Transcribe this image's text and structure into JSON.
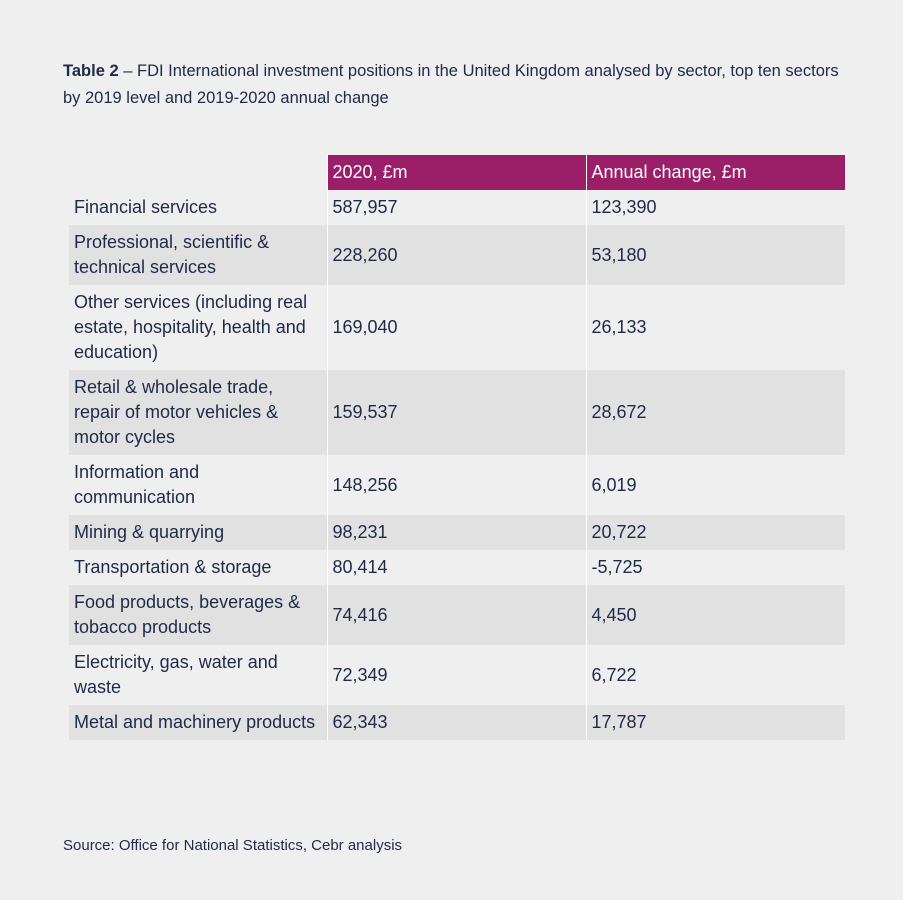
{
  "caption": {
    "label": "Table 2",
    "text": " – FDI International investment positions in the United Kingdom analysed by sector, top ten sectors by 2019 level and 2019-2020 annual change"
  },
  "table": {
    "headers": [
      "",
      "2020, £m",
      "Annual change, £m"
    ],
    "rows": [
      {
        "sector": "Financial services",
        "value_2020": "587,957",
        "annual_change": "123,390"
      },
      {
        "sector": "Professional, scientific & technical services",
        "value_2020": "228,260",
        "annual_change": "53,180"
      },
      {
        "sector": "Other services (including real estate, hospitality, health and education)",
        "value_2020": "169,040",
        "annual_change": "26,133"
      },
      {
        "sector": "Retail & wholesale trade, repair of motor vehicles & motor cycles",
        "value_2020": "159,537",
        "annual_change": "28,672"
      },
      {
        "sector": "Information and communication",
        "value_2020": "148,256",
        "annual_change": "6,019"
      },
      {
        "sector": "Mining & quarrying",
        "value_2020": "98,231",
        "annual_change": "20,722"
      },
      {
        "sector": "Transportation & storage",
        "value_2020": "80,414",
        "annual_change": "-5,725"
      },
      {
        "sector": "Food products, beverages & tobacco products",
        "value_2020": "74,416",
        "annual_change": "4,450"
      },
      {
        "sector": "Electricity, gas, water and waste",
        "value_2020": "72,349",
        "annual_change": "6,722"
      },
      {
        "sector": "Metal and machinery products",
        "value_2020": "62,343",
        "annual_change": "17,787"
      }
    ]
  },
  "source": "Source: Office for National Statistics, Cebr analysis",
  "colors": {
    "header_bg": "#9b1f68",
    "row_alt_bg": "#e1e1e1",
    "page_bg": "#efefef",
    "text": "#1e2a4a"
  }
}
